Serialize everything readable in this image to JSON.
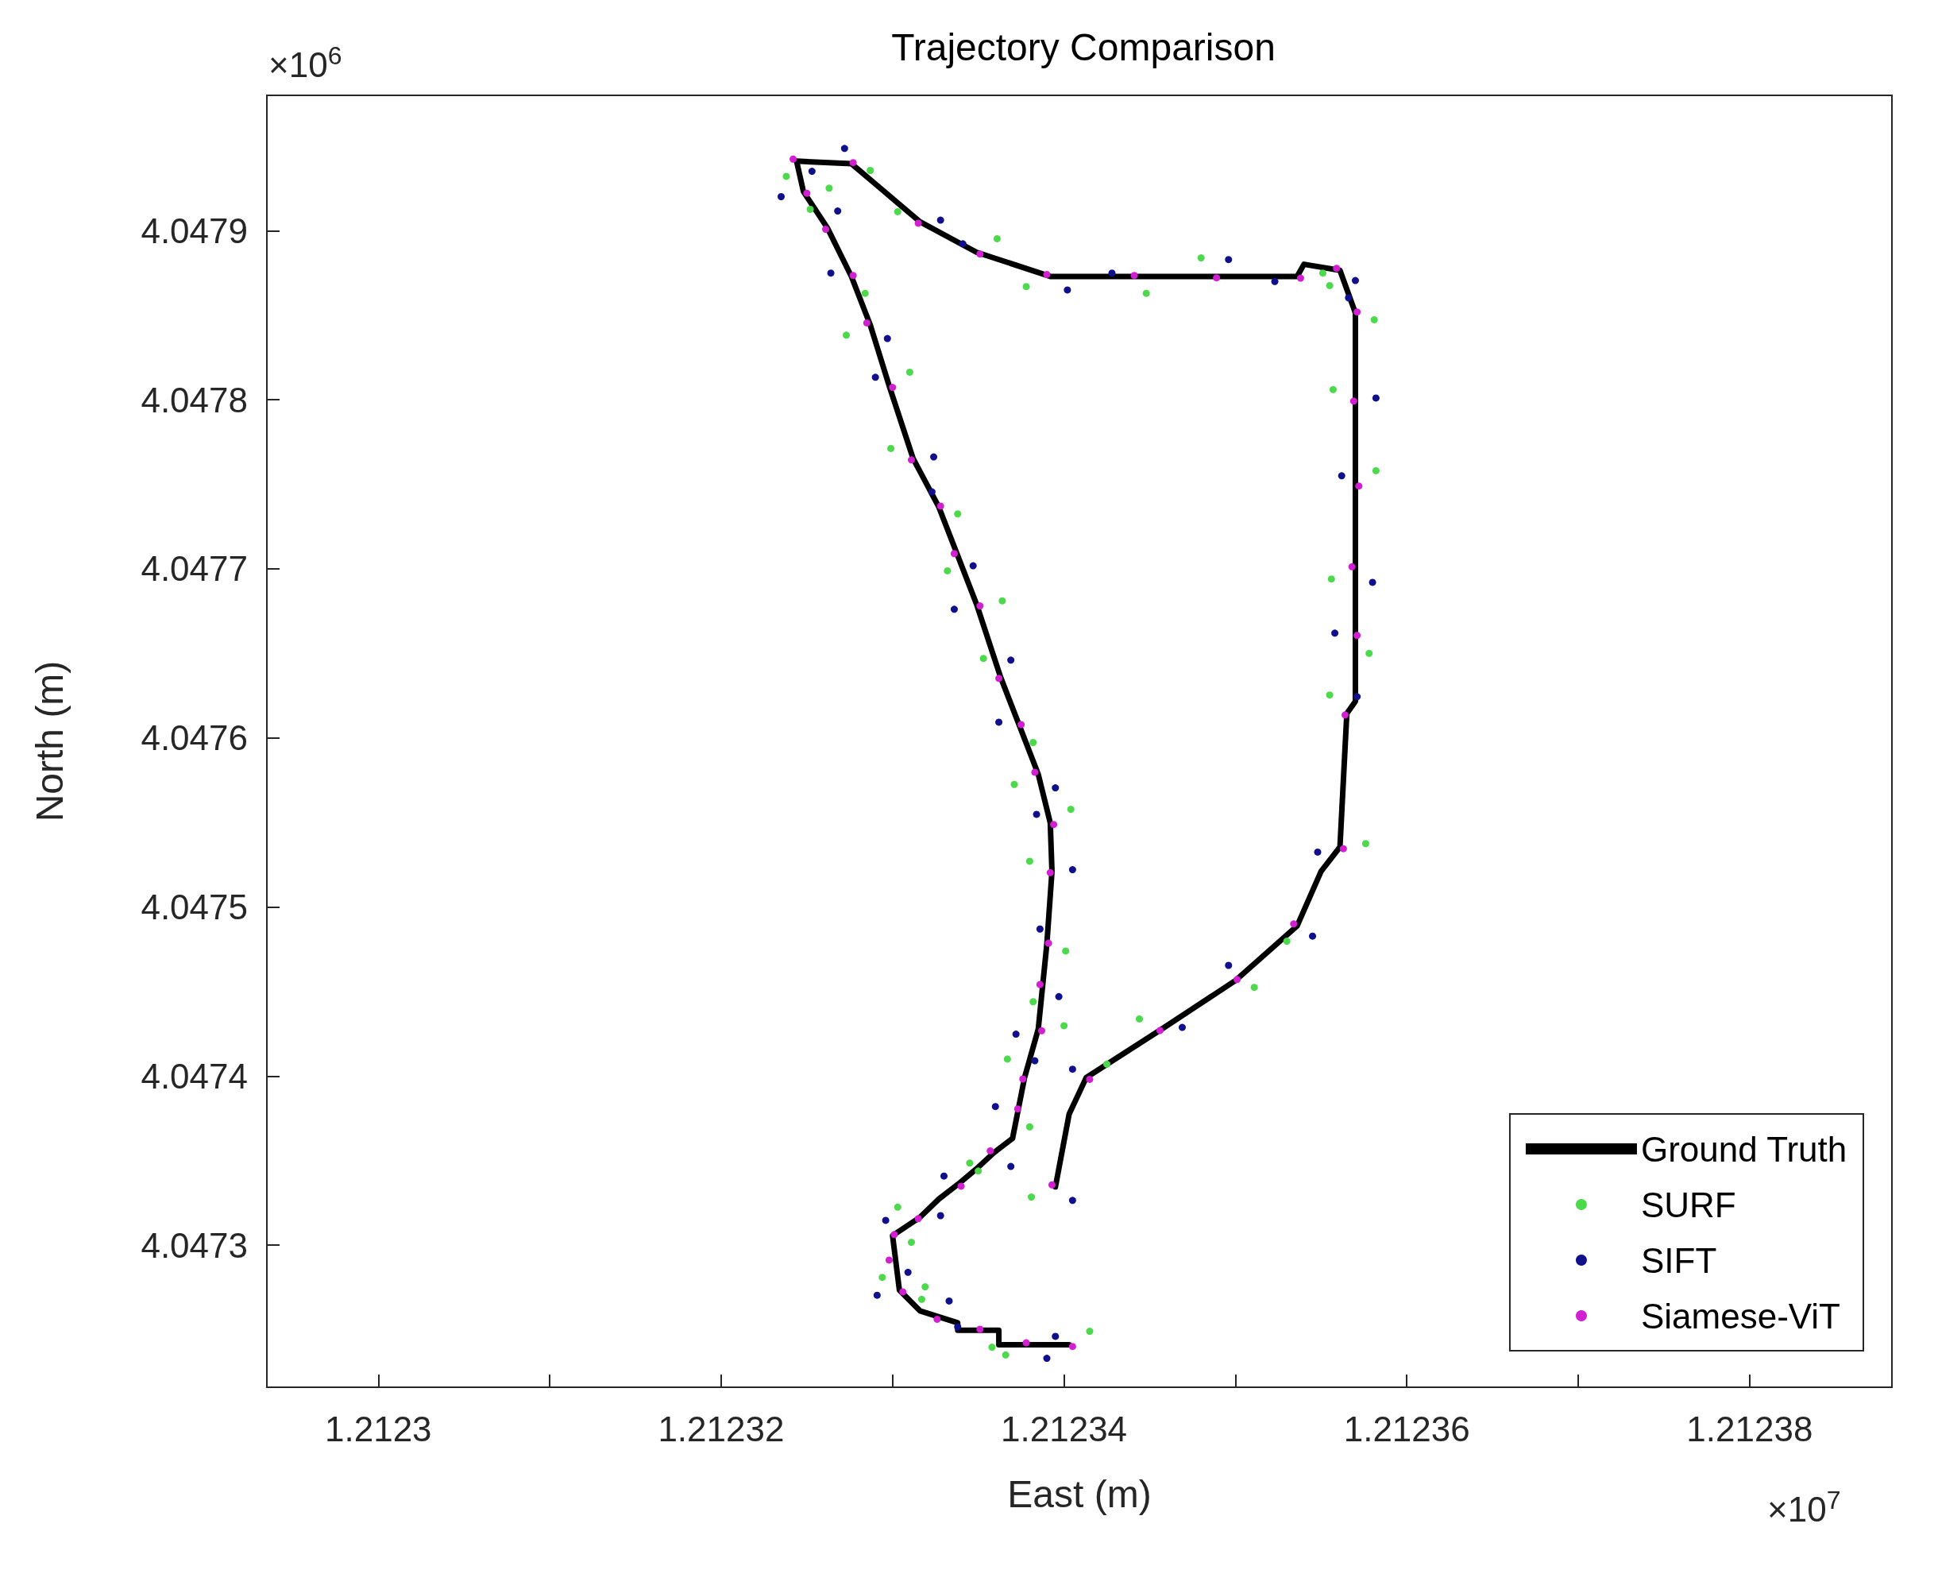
{
  "chart_data": {
    "type": "scatter",
    "title": "Trajectory Comparison",
    "xlabel": "East (m)",
    "ylabel": "North (m)",
    "annotations": [
      "×10$^{7}$",
      "×10$^{6}$"
    ],
    "xlim": [
      1.2122935,
      1.2123883
    ],
    "ylim": [
      4.047216,
      4.04798
    ],
    "xticks": [
      1.2123,
      {
        "value": 1.21231,
        "label": null
      },
      1.21232,
      {
        "value": 1.21233,
        "label": null
      },
      1.21234,
      {
        "value": 1.21235,
        "label": null
      },
      1.21236,
      {
        "value": 1.21237,
        "label": null
      },
      1.21238
    ],
    "yticks": [
      4.0473,
      4.0474,
      4.0475,
      4.0476,
      4.0477,
      4.0478,
      4.0479
    ],
    "grid": false,
    "legend": "bottom right",
    "series": [
      {
        "name": "Ground Truth",
        "type": "line",
        "color": "#000000",
        "marker": "none",
        "line_style": "solid",
        "x": [
          1.2123403,
          1.2123362,
          1.2123362,
          1.2123338,
          1.2123338,
          1.2123316,
          1.2123304,
          1.21233,
          1.2123316,
          1.2123327,
          1.2123338,
          1.2123349,
          1.2123359,
          1.212337,
          1.2123377,
          1.2123385,
          1.212339,
          1.2123393,
          1.2123392,
          1.2123385,
          1.2123374,
          1.2123363,
          1.2123349,
          1.2123338,
          1.2123327,
          1.2123312,
          1.2123298,
          1.2123287,
          1.2123276,
          1.2123262,
          1.2123248,
          1.2123244,
          1.2123276,
          1.2123291,
          1.2123316,
          1.2123349,
          1.2123392,
          1.2123536,
          1.212354,
          1.2123561,
          1.212357,
          1.212357,
          1.2123565,
          1.2123561,
          1.212355,
          1.2123536,
          1.21235,
          1.2123457,
          1.2123413,
          1.2123403,
          1.2123395
        ],
        "values": [
          4.0472411,
          4.0472411,
          4.0472497,
          4.0472497,
          4.0472541,
          4.0472612,
          4.0472734,
          4.0473057,
          4.0473165,
          4.0473273,
          4.0473359,
          4.0473452,
          4.0473546,
          4.0473632,
          4.0473991,
          4.0474278,
          4.047478,
          4.0475211,
          4.0475498,
          4.0475785,
          4.0476073,
          4.047636,
          4.0476791,
          4.0477078,
          4.0477365,
          4.0477652,
          4.0478083,
          4.0478442,
          4.0478729,
          4.0479016,
          4.0479231,
          4.0479411,
          4.0479396,
          4.0479267,
          4.0479052,
          4.0478872,
          4.0478729,
          4.0478729,
          4.0478801,
          4.0478765,
          4.0478513,
          4.0476216,
          4.0476144,
          4.0475355,
          4.0475211,
          4.0474888,
          4.0474565,
          4.0474278,
          4.0473991,
          4.0473775,
          4.0473345
        ]
      },
      {
        "name": "SURF",
        "color": "#4cd94c",
        "marker": "circle",
        "x": [
          1.2123415,
          1.2123366,
          1.2123358,
          1.2123317,
          1.2123319,
          1.2123294,
          1.2123311,
          1.2123303,
          1.212335,
          1.2123345,
          1.212338,
          1.2123367,
          1.21234,
          1.2123382,
          1.2123401,
          1.212338,
          1.2123404,
          1.2123371,
          1.2123382,
          1.2123353,
          1.2123364,
          1.2123332,
          1.2123338,
          1.2123299,
          1.212331,
          1.2123273,
          1.2123284,
          1.2123252,
          1.2123263,
          1.2123238,
          1.2123287,
          1.2123303,
          1.2123361,
          1.2123378,
          1.2123448,
          1.212348,
          1.2123551,
          1.2123555,
          1.2123581,
          1.2123557,
          1.2123582,
          1.2123556,
          1.2123578,
          1.2123555,
          1.2123576,
          1.212353,
          1.2123511,
          1.2123444,
          1.2123425,
          1.2123381
        ],
        "values": [
          4.0472491,
          4.0472351,
          4.0472397,
          4.047268,
          4.0472754,
          4.047281,
          4.0473017,
          4.0473225,
          4.0473439,
          4.0473486,
          4.04737,
          4.0474101,
          4.0474298,
          4.047444,
          4.047474,
          4.0475271,
          4.0475578,
          4.0475725,
          4.0475973,
          4.047647,
          4.0476811,
          4.0476988,
          4.0477325,
          4.0477712,
          4.0478163,
          4.0478382,
          4.0478629,
          4.0479126,
          4.0479251,
          4.0479321,
          4.0479356,
          4.0479112,
          4.0478952,
          4.0478669,
          4.0478629,
          4.0478839,
          4.0478749,
          4.0478675,
          4.0478473,
          4.047806,
          4.047758,
          4.047694,
          4.04765,
          4.0476254,
          4.0475375,
          4.0474798,
          4.0474525,
          4.0474338,
          4.0474071,
          4.0473285
        ]
      },
      {
        "name": "SIFT",
        "color": "#10108c",
        "marker": "circle",
        "x": [
          1.2123395,
          1.212339,
          1.2123338,
          1.2123333,
          1.2123291,
          1.2123309,
          1.2123296,
          1.2123328,
          1.212333,
          1.2123369,
          1.212336,
          1.2123383,
          1.2123372,
          1.2123397,
          1.2123386,
          1.2123405,
          1.2123384,
          1.2123395,
          1.2123362,
          1.2123369,
          1.2123336,
          1.2123347,
          1.2123323,
          1.2123324,
          1.212329,
          1.2123297,
          1.2123264,
          1.2123268,
          1.2123235,
          1.2123253,
          1.2123272,
          1.2123328,
          1.2123341,
          1.2123402,
          1.2123428,
          1.2123496,
          1.2123523,
          1.212357,
          1.2123566,
          1.2123582,
          1.2123562,
          1.212358,
          1.2123558,
          1.2123571,
          1.2123548,
          1.2123545,
          1.2123496,
          1.2123469,
          1.2123405,
          1.2123405
        ],
        "values": [
          4.0472461,
          4.0472331,
          4.0472517,
          4.047267,
          4.0472704,
          4.047284,
          4.0473147,
          4.0473175,
          4.0473409,
          4.0473466,
          4.047382,
          4.0474091,
          4.0474248,
          4.047447,
          4.047487,
          4.0475221,
          4.0475548,
          4.0475705,
          4.0476093,
          4.047646,
          4.0476761,
          4.0477018,
          4.0477455,
          4.0477662,
          4.0478133,
          4.0478362,
          4.0478749,
          4.0479116,
          4.0479201,
          4.0479351,
          4.0479486,
          4.0479062,
          4.0478922,
          4.0478649,
          4.0478749,
          4.0478829,
          4.0478699,
          4.0478705,
          4.0478603,
          4.047801,
          4.047755,
          4.047692,
          4.047662,
          4.0476244,
          4.0475325,
          4.0474828,
          4.0474655,
          4.0474288,
          4.0474041,
          4.0473265
        ]
      },
      {
        "name": "Siamese-ViT",
        "color": "#d21fd2",
        "marker": "circle",
        "x": [
          1.2123405,
          1.2123378,
          1.2123351,
          1.2123326,
          1.2123306,
          1.2123298,
          1.2123301,
          1.2123315,
          1.212334,
          1.2123357,
          1.2123373,
          1.2123376,
          1.2123387,
          1.2123386,
          1.2123391,
          1.2123392,
          1.2123394,
          1.2123383,
          1.2123375,
          1.2123362,
          1.2123351,
          1.2123336,
          1.2123328,
          1.2123311,
          1.21233,
          1.2123285,
          1.2123277,
          1.2123261,
          1.212325,
          1.2123242,
          1.2123277,
          1.2123315,
          1.2123351,
          1.212339,
          1.2123441,
          1.2123489,
          1.2123538,
          1.2123559,
          1.2123571,
          1.2123569,
          1.2123572,
          1.2123568,
          1.2123571,
          1.2123564,
          1.2123563,
          1.2123534,
          1.2123501,
          1.2123456,
          1.2123415,
          1.2123393
        ],
        "values": [
          4.0472401,
          4.0472423,
          4.0472503,
          4.0472562,
          4.0472724,
          4.0472912,
          4.0473063,
          4.0473157,
          4.0473349,
          4.0473558,
          4.0473806,
          4.0473983,
          4.0474268,
          4.0474542,
          4.0474786,
          4.0475203,
          4.0475488,
          4.0475797,
          4.0476079,
          4.0476352,
          4.0476781,
          4.047709,
          4.0477371,
          4.0477644,
          4.0478073,
          4.0478454,
          4.0478735,
          4.0479008,
          4.0479221,
          4.0479423,
          4.0479402,
          4.0479044,
          4.0478862,
          4.0478741,
          4.0478735,
          4.0478721,
          4.0478719,
          4.0478777,
          4.0478519,
          4.0477992,
          4.047749,
          4.0477012,
          4.0476606,
          4.0476136,
          4.0475345,
          4.04749,
          4.0474571,
          4.047427,
          4.0473981,
          4.0473357
        ]
      }
    ]
  }
}
